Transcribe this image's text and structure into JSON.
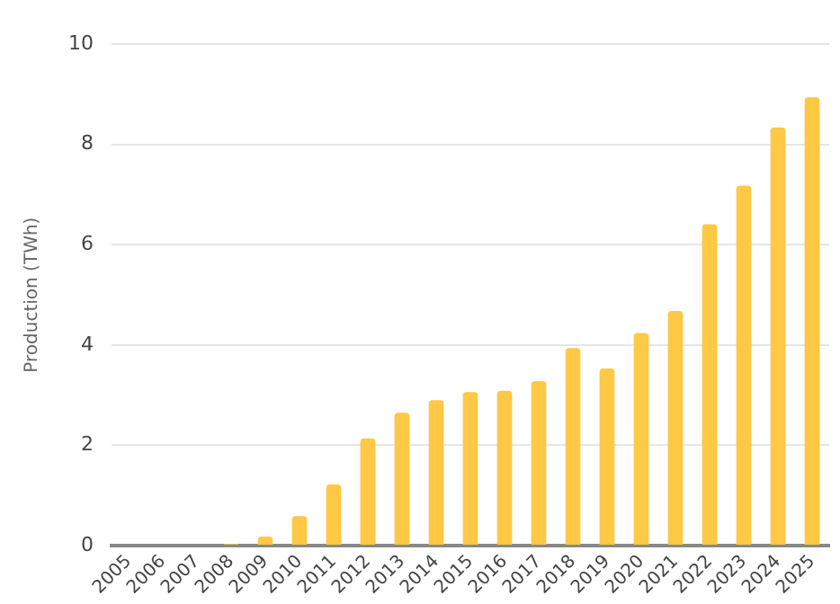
{
  "chart_data": {
    "type": "bar",
    "ylabel": "Production (TWh)",
    "categories": [
      "2005",
      "2006",
      "2007",
      "2008",
      "2009",
      "2010",
      "2011",
      "2012",
      "2013",
      "2014",
      "2015",
      "2016",
      "2017",
      "2018",
      "2019",
      "2020",
      "2021",
      "2022",
      "2023",
      "2024",
      "2025"
    ],
    "values": [
      0,
      0,
      0,
      0.03,
      0.18,
      0.59,
      1.22,
      2.14,
      2.65,
      2.9,
      3.06,
      3.09,
      3.28,
      3.94,
      3.53,
      4.24,
      4.68,
      6.41,
      7.18,
      8.34,
      8.94
    ],
    "color": "#ffc845",
    "ylim": [
      0,
      10
    ],
    "yticks": [
      0,
      2,
      4,
      6,
      8,
      10
    ],
    "grid": "y"
  }
}
